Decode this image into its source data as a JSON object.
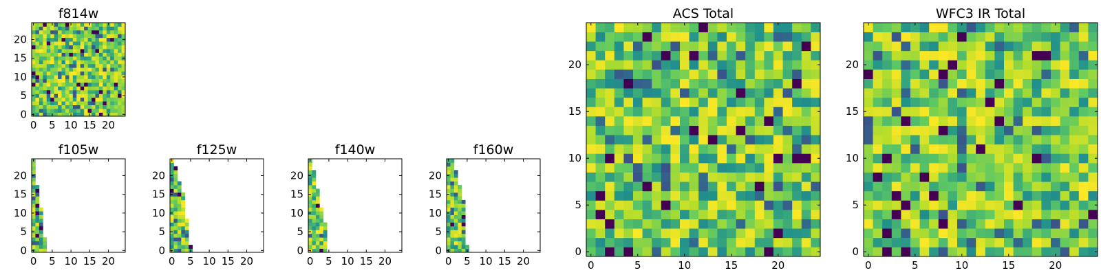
{
  "colors": {
    "background": "#ffffff",
    "axis": "#000000",
    "colormap": [
      "#440154",
      "#3b528b",
      "#21918c",
      "#5ec962",
      "#b5de2b",
      "#fde725"
    ]
  },
  "chart_data": [
    {
      "type": "heatmap",
      "name": "f814w",
      "title": "f814w",
      "colormap": "viridis",
      "grid": false,
      "xlim": [
        -0.5,
        24.5
      ],
      "ylim": [
        -0.5,
        24.5
      ],
      "xticks": [
        0,
        5,
        10,
        15,
        20
      ],
      "yticks": [
        0,
        5,
        10,
        15,
        20
      ],
      "xtick_labels": [
        "0",
        "5",
        "10",
        "15",
        "20"
      ],
      "ytick_labels": [
        "0",
        "5",
        "10",
        "15",
        "20"
      ],
      "width": 25,
      "height": 25,
      "noise_seed": 11,
      "fill_cols_by_row": null
    },
    {
      "type": "heatmap",
      "name": "f105w",
      "title": "f105w",
      "colormap": "viridis",
      "grid": false,
      "xlim": [
        -0.5,
        24.5
      ],
      "ylim": [
        -0.5,
        24.5
      ],
      "xticks": [
        0,
        5,
        10,
        15,
        20
      ],
      "yticks": [
        0,
        5,
        10,
        15,
        20
      ],
      "xtick_labels": [
        "0",
        "5",
        "10",
        "15",
        "20"
      ],
      "ytick_labels": [
        "0",
        "5",
        "10",
        "15",
        "20"
      ],
      "width": 25,
      "height": 25,
      "noise_seed": 23,
      "fill_cols_by_row": [
        4,
        4,
        4,
        4,
        3,
        3,
        3,
        3,
        3,
        3,
        3,
        3,
        2,
        2,
        2,
        2,
        2,
        2,
        1,
        1,
        1,
        1,
        1,
        1,
        1
      ]
    },
    {
      "type": "heatmap",
      "name": "f125w",
      "title": "f125w",
      "colormap": "viridis",
      "grid": false,
      "xlim": [
        -0.5,
        24.5
      ],
      "ylim": [
        -0.5,
        24.5
      ],
      "xticks": [
        0,
        5,
        10,
        15,
        20
      ],
      "yticks": [
        0,
        5,
        10,
        15,
        20
      ],
      "xtick_labels": [
        "0",
        "5",
        "10",
        "15",
        "20"
      ],
      "ytick_labels": [
        "0",
        "5",
        "10",
        "15",
        "20"
      ],
      "width": 25,
      "height": 25,
      "noise_seed": 37,
      "fill_cols_by_row": [
        6,
        6,
        5,
        5,
        5,
        5,
        5,
        5,
        5,
        4,
        4,
        4,
        4,
        4,
        4,
        4,
        3,
        3,
        3,
        2,
        2,
        2,
        2,
        1,
        1
      ]
    },
    {
      "type": "heatmap",
      "name": "f140w",
      "title": "f140w",
      "colormap": "viridis",
      "grid": false,
      "xlim": [
        -0.5,
        24.5
      ],
      "ylim": [
        -0.5,
        24.5
      ],
      "xticks": [
        0,
        5,
        10,
        15,
        20
      ],
      "yticks": [
        0,
        5,
        10,
        15,
        20
      ],
      "xtick_labels": [
        "0",
        "5",
        "10",
        "15",
        "20"
      ],
      "ytick_labels": [
        "0",
        "5",
        "10",
        "15",
        "20"
      ],
      "width": 25,
      "height": 25,
      "noise_seed": 41,
      "fill_cols_by_row": [
        5,
        5,
        5,
        5,
        5,
        5,
        5,
        5,
        4,
        4,
        4,
        4,
        3,
        3,
        3,
        3,
        3,
        2,
        2,
        2,
        2,
        2,
        1,
        1,
        1
      ]
    },
    {
      "type": "heatmap",
      "name": "f160w",
      "title": "f160w",
      "colormap": "viridis",
      "grid": false,
      "xlim": [
        -0.5,
        24.5
      ],
      "ylim": [
        -0.5,
        24.5
      ],
      "xticks": [
        0,
        5,
        10,
        15,
        20
      ],
      "yticks": [
        0,
        5,
        10,
        15,
        20
      ],
      "xtick_labels": [
        "0",
        "5",
        "10",
        "15",
        "20"
      ],
      "ytick_labels": [
        "0",
        "5",
        "10",
        "15",
        "20"
      ],
      "width": 25,
      "height": 25,
      "noise_seed": 53,
      "fill_cols_by_row": [
        6,
        6,
        5,
        5,
        5,
        5,
        5,
        5,
        5,
        5,
        5,
        5,
        5,
        5,
        4,
        4,
        4,
        4,
        3,
        3,
        3,
        3,
        2,
        2,
        2
      ]
    },
    {
      "type": "heatmap",
      "name": "acs-total",
      "title": "ACS Total",
      "colormap": "viridis",
      "grid": false,
      "xlim": [
        -0.5,
        24.5
      ],
      "ylim": [
        -0.5,
        24.5
      ],
      "xticks": [
        0,
        5,
        10,
        15,
        20
      ],
      "yticks": [
        0,
        5,
        10,
        15,
        20
      ],
      "xtick_labels": [
        "0",
        "5",
        "10",
        "15",
        "20"
      ],
      "ytick_labels": [
        "0",
        "5",
        "10",
        "15",
        "20"
      ],
      "width": 25,
      "height": 25,
      "noise_seed": 67,
      "fill_cols_by_row": null
    },
    {
      "type": "heatmap",
      "name": "wfc3-ir-total",
      "title": "WFC3 IR Total",
      "colormap": "viridis",
      "grid": false,
      "xlim": [
        -0.5,
        24.5
      ],
      "ylim": [
        -0.5,
        24.5
      ],
      "xticks": [
        0,
        5,
        10,
        15,
        20
      ],
      "yticks": [
        0,
        5,
        10,
        15,
        20
      ],
      "xtick_labels": [
        "0",
        "5",
        "10",
        "15",
        "20"
      ],
      "ytick_labels": [
        "0",
        "5",
        "10",
        "15",
        "20"
      ],
      "width": 25,
      "height": 25,
      "noise_seed": 79,
      "fill_cols_by_row": null
    }
  ]
}
